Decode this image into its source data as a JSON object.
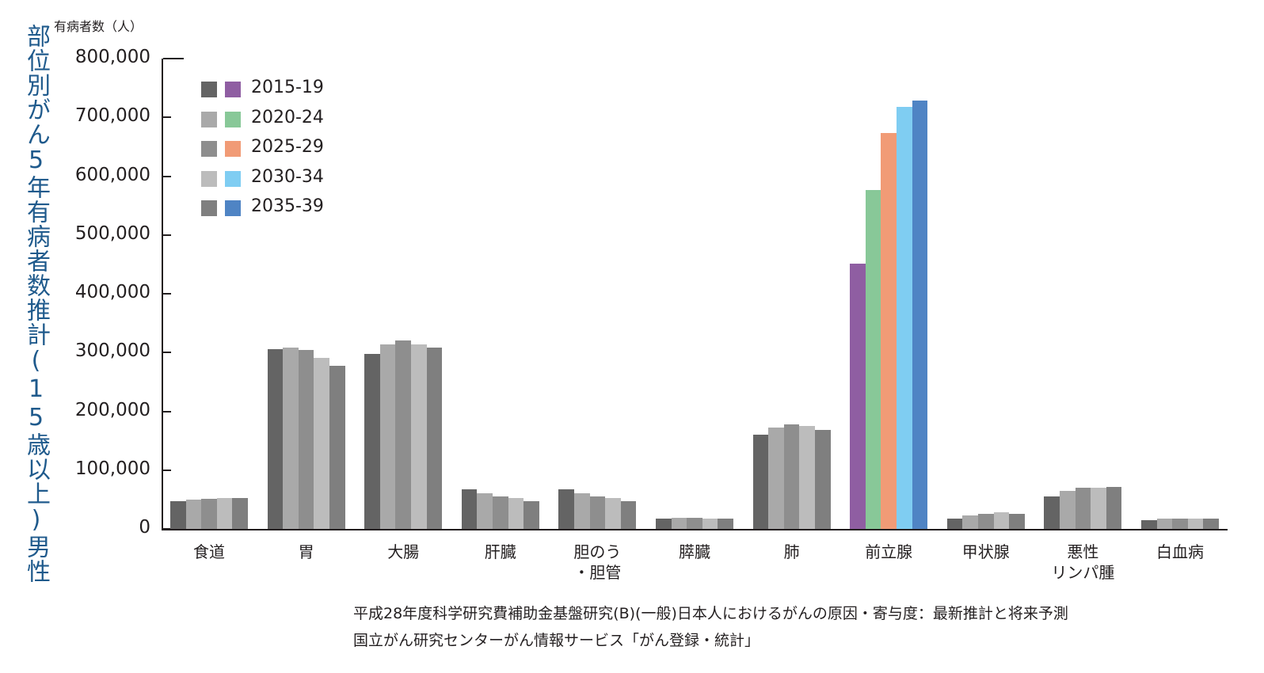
{
  "chart_data": {
    "type": "bar",
    "title": "部位別がん5年有病者数推計（15歳以上）男性",
    "xlabel": "",
    "ylabel": "有病者数（人）",
    "ylim": [
      0,
      800000
    ],
    "yticks": [
      "800,000",
      "700,000",
      "600,000",
      "500,000",
      "400,000",
      "300,000",
      "200,000",
      "100,000",
      "0"
    ],
    "grid": false,
    "legend_position": "upper-left",
    "categories": [
      "食道",
      "胃",
      "大腸",
      "肝臓",
      "胆のう・胆管",
      "膵臓",
      "肺",
      "前立腺",
      "甲状腺",
      "悪性リンパ腫",
      "白血病"
    ],
    "category_labels": [
      [
        "食道"
      ],
      [
        "胃"
      ],
      [
        "大腸"
      ],
      [
        "肝臓"
      ],
      [
        "胆のう",
        "・胆管"
      ],
      [
        "膵臓"
      ],
      [
        "肺"
      ],
      [
        "前立腺"
      ],
      [
        "甲状腺"
      ],
      [
        "悪性",
        "リンパ腫"
      ],
      [
        "白血病"
      ]
    ],
    "highlight_category": "前立腺",
    "series": [
      {
        "name": "2015-19",
        "color": "#646464",
        "highlight_color": "#8f5ea2",
        "values": [
          47000,
          306000,
          298000,
          68000,
          68000,
          18000,
          160000,
          451000,
          18000,
          55000,
          15000
        ]
      },
      {
        "name": "2020-24",
        "color": "#a9a9a9",
        "highlight_color": "#88c898",
        "values": [
          50000,
          309000,
          314000,
          60000,
          60000,
          19000,
          173000,
          577000,
          23000,
          65000,
          18000
        ]
      },
      {
        "name": "2025-29",
        "color": "#8e8e8e",
        "highlight_color": "#f19b76",
        "values": [
          51000,
          304000,
          320000,
          55000,
          55000,
          19000,
          178000,
          673000,
          26000,
          70000,
          18000
        ]
      },
      {
        "name": "2030-34",
        "color": "#bcbcbc",
        "highlight_color": "#7fcdf2",
        "values": [
          52000,
          291000,
          314000,
          52000,
          52000,
          18000,
          175000,
          718000,
          28000,
          70000,
          18000
        ]
      },
      {
        "name": "2035-39",
        "color": "#7f7f7f",
        "highlight_color": "#4f84c4",
        "values": [
          53000,
          278000,
          309000,
          47000,
          47000,
          17000,
          168000,
          728000,
          26000,
          72000,
          18000
        ]
      }
    ]
  },
  "vertical_title": "部位別がん5年有病者数推計(15歳以上)男性",
  "unit_label": "有病者数（人）",
  "source_lines": [
    "平成28年度科学研究費補助金基盤研究(B)(一般)日本人におけるがんの原因・寄与度：最新推計と将来予測",
    "国立がん研究センターがん情報サービス「がん登録・統計」"
  ],
  "colors": {
    "title": "#1f5a8c",
    "text": "#231f20",
    "axis": "#231f20"
  }
}
